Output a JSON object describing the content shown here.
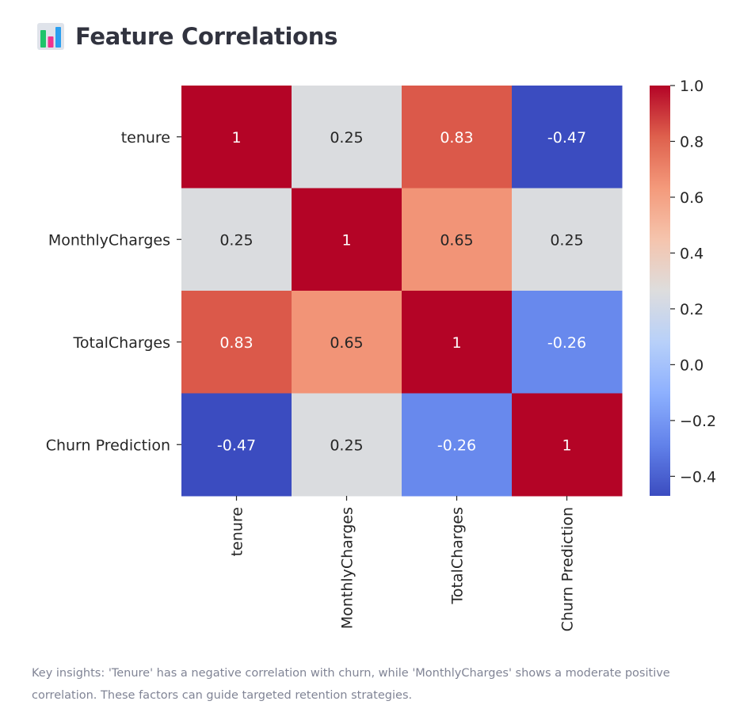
{
  "page": {
    "title": "Feature Correlations",
    "title_icon": "bar-chart-icon",
    "caption": "Key insights: 'Tenure' has a negative correlation with churn, while 'MonthlyCharges' shows a moderate positive correlation. These factors can guide targeted retention strategies."
  },
  "colors": {
    "title": "#31333f",
    "caption": "#808495",
    "colormap": "coolwarm"
  },
  "chart_data": {
    "type": "heatmap",
    "title": "",
    "xlabel": "",
    "ylabel": "",
    "rows": [
      "tenure",
      "MonthlyCharges",
      "TotalCharges",
      "Churn Prediction"
    ],
    "columns": [
      "tenure",
      "MonthlyCharges",
      "TotalCharges",
      "Churn Prediction"
    ],
    "values": [
      [
        1,
        0.25,
        0.83,
        -0.47
      ],
      [
        0.25,
        1,
        0.65,
        0.25
      ],
      [
        0.83,
        0.65,
        1,
        -0.26
      ],
      [
        -0.47,
        0.25,
        -0.26,
        1
      ]
    ],
    "annotations": [
      [
        "1",
        "0.25",
        "0.83",
        "-0.47"
      ],
      [
        "0.25",
        "1",
        "0.65",
        "0.25"
      ],
      [
        "0.83",
        "0.65",
        "1",
        "-0.26"
      ],
      [
        "-0.47",
        "0.25",
        "-0.26",
        "1"
      ]
    ],
    "colorbar": {
      "min": -0.47,
      "max": 1.0,
      "ticks": [
        1.0,
        0.8,
        0.6,
        0.4,
        0.2,
        0.0,
        -0.2,
        -0.4
      ],
      "tick_labels": [
        "1.0",
        "0.8",
        "0.6",
        "0.4",
        "0.2",
        "0.0",
        "−0.2",
        "−0.4"
      ]
    },
    "grid": false,
    "legend": "colorbar-right"
  }
}
